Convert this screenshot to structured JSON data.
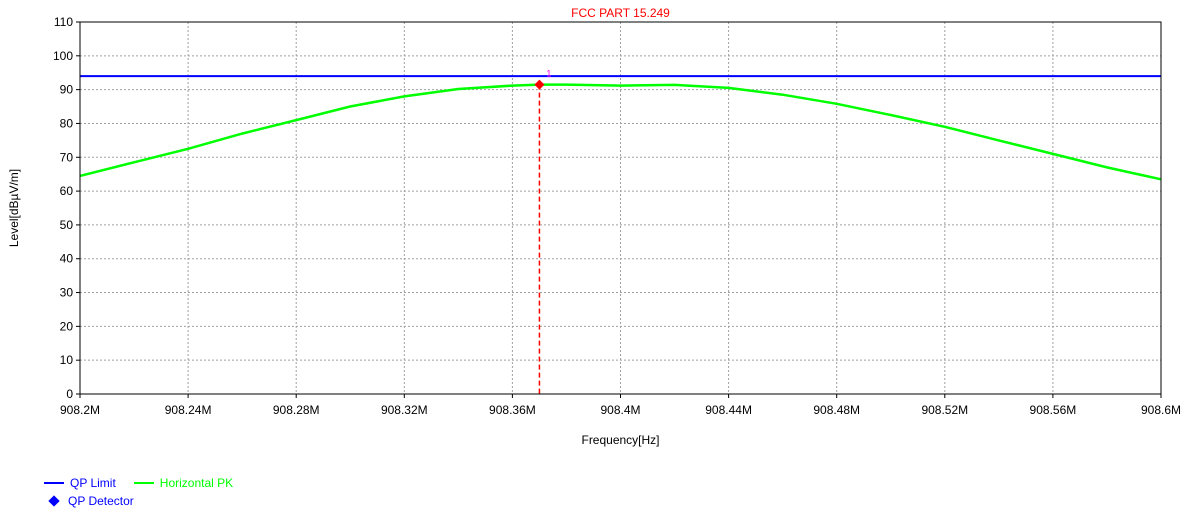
{
  "chart_data": {
    "type": "line",
    "title": "FCC PART 15.249",
    "xlabel": "Frequency[Hz]",
    "ylabel": "Level[dBµV/m]",
    "xlim": [
      908.2,
      908.6
    ],
    "ylim": [
      0,
      110
    ],
    "grid": true,
    "x_ticks": [
      908.2,
      908.24,
      908.28,
      908.32,
      908.36,
      908.4,
      908.44,
      908.48,
      908.52,
      908.56,
      908.6
    ],
    "x_tick_labels": [
      "908.2M",
      "908.24M",
      "908.28M",
      "908.32M",
      "908.36M",
      "908.4M",
      "908.44M",
      "908.48M",
      "908.52M",
      "908.56M",
      "908.6M"
    ],
    "y_ticks": [
      0,
      10,
      20,
      30,
      40,
      50,
      60,
      70,
      80,
      90,
      100,
      110
    ],
    "y_tick_labels": [
      "0",
      "10",
      "20",
      "30",
      "40",
      "50",
      "60",
      "70",
      "80",
      "90",
      "100",
      "110"
    ],
    "series": [
      {
        "name": "QP Limit",
        "color": "#0000ff",
        "x": [
          908.2,
          908.6
        ],
        "y": [
          94,
          94
        ]
      },
      {
        "name": "Horizontal PK",
        "color": "#00ff00",
        "x": [
          908.2,
          908.22,
          908.24,
          908.26,
          908.28,
          908.3,
          908.32,
          908.34,
          908.36,
          908.37,
          908.38,
          908.4,
          908.42,
          908.44,
          908.46,
          908.48,
          908.5,
          908.52,
          908.54,
          908.56,
          908.58,
          908.6
        ],
        "y": [
          64.5,
          68.5,
          72.5,
          77,
          81,
          85,
          88,
          90.2,
          91.2,
          91.5,
          91.5,
          91.2,
          91.4,
          90.5,
          88.5,
          85.8,
          82.5,
          79,
          75,
          71,
          67,
          63.5
        ]
      }
    ],
    "markers": [
      {
        "name": "QP Detector",
        "color": "#ff0000",
        "x": 908.37,
        "y": 91.5,
        "label": "1"
      }
    ],
    "legend": {
      "placement": "bottom-left",
      "entries": [
        {
          "label": "QP Limit",
          "color": "#0000ff",
          "symbol": "line"
        },
        {
          "label": "Horizontal PK",
          "color": "#00ff00",
          "symbol": "line"
        },
        {
          "label": "QP Detector",
          "color": "#0000ff",
          "symbol": "diamond"
        }
      ]
    },
    "colors": {
      "title": "#ff0000",
      "grid": "#a0a0a0",
      "legend_text": "#0000ff",
      "legend_text_pk": "#00ff00",
      "marker_line": "#ff0000"
    }
  }
}
